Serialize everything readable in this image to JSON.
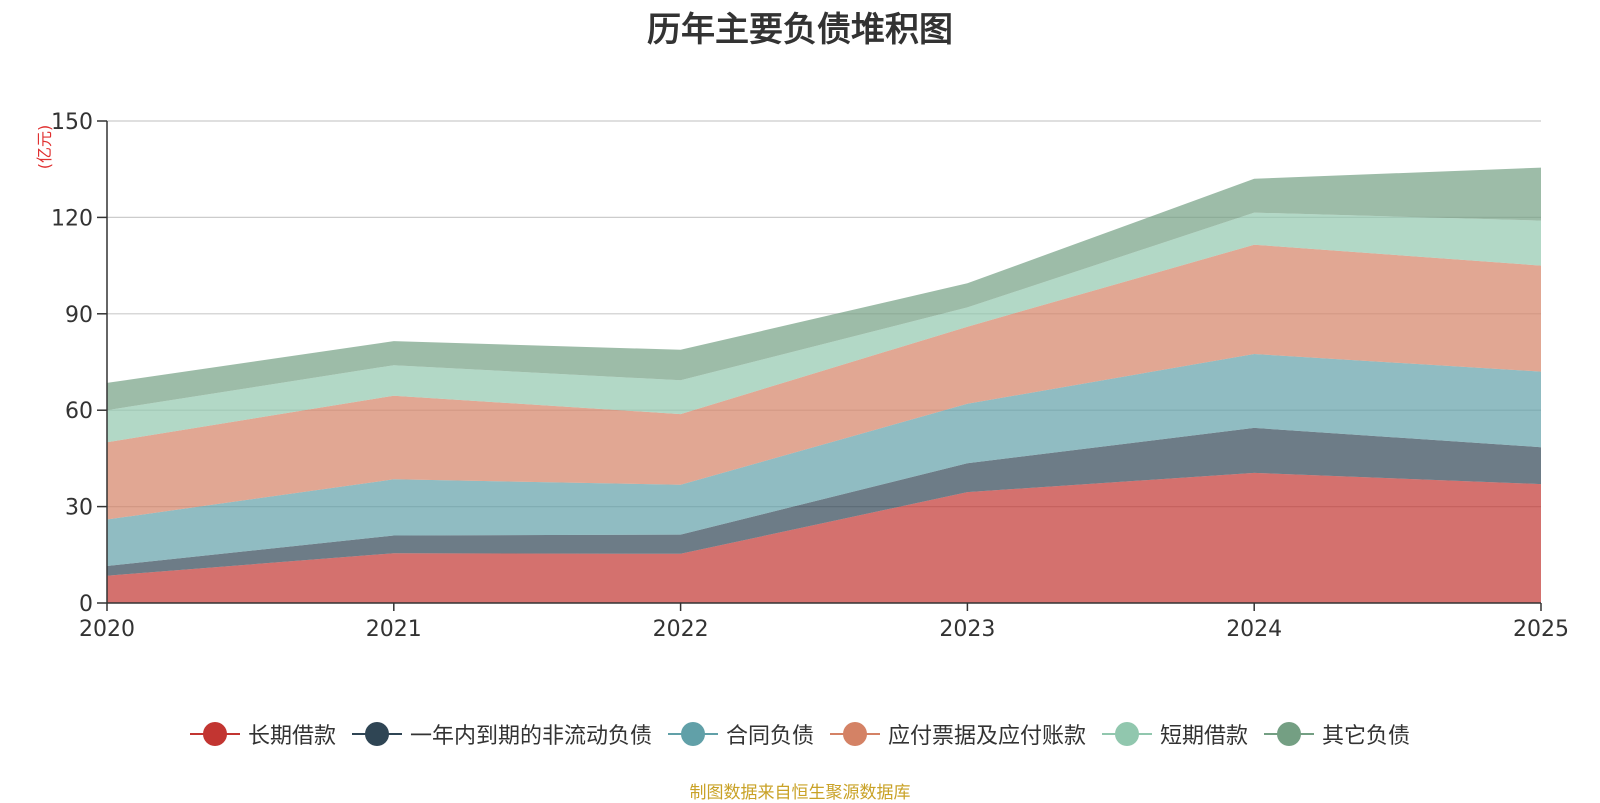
{
  "chart_data": {
    "type": "area",
    "stacked": true,
    "title": "历年主要负债堆积图",
    "unit_label": "(亿元)",
    "x": [
      "2020",
      "2021",
      "2022",
      "2023",
      "2024",
      "2025"
    ],
    "ylim": [
      0,
      150
    ],
    "yticks": [
      0,
      30,
      60,
      90,
      120,
      150
    ],
    "grid": true,
    "legend_position": "bottom",
    "series": [
      {
        "name": "长期借款",
        "color": "#c23531",
        "values": [
          8.5,
          15.5,
          15.3,
          34.5,
          40.5,
          37.0
        ]
      },
      {
        "name": "一年内到期的非流动负债",
        "color": "#2f4554",
        "values": [
          3.0,
          5.5,
          6.0,
          9.0,
          14.0,
          11.5
        ]
      },
      {
        "name": "合同负债",
        "color": "#61a0a8",
        "values": [
          14.5,
          17.5,
          15.5,
          18.5,
          23.0,
          23.5
        ]
      },
      {
        "name": "应付票据及应付账款",
        "color": "#d48265",
        "values": [
          24.0,
          26.0,
          22.0,
          24.0,
          34.0,
          33.0
        ]
      },
      {
        "name": "短期借款",
        "color": "#91c7ae",
        "values": [
          10.0,
          9.5,
          10.5,
          6.0,
          10.0,
          14.0
        ]
      },
      {
        "name": "其它负债",
        "color": "#749f83",
        "values": [
          8.5,
          7.5,
          9.5,
          7.5,
          10.5,
          16.5
        ]
      }
    ],
    "source": "制图数据来自恒生聚源数据库"
  }
}
